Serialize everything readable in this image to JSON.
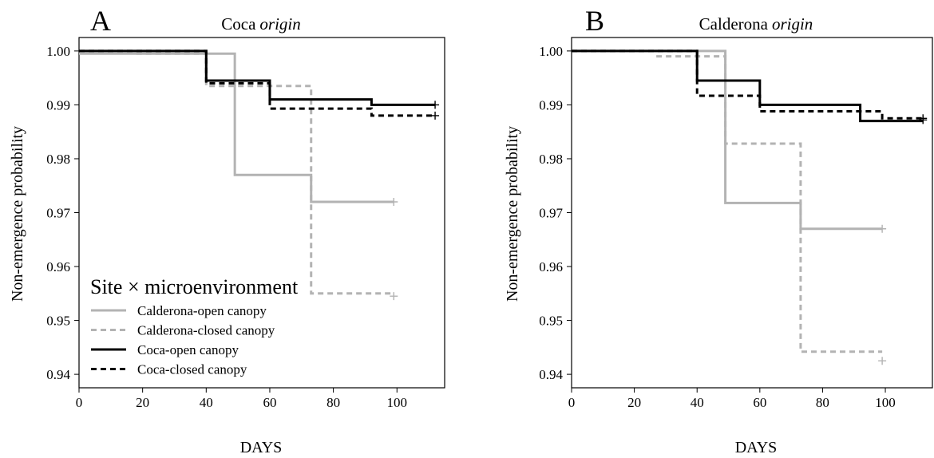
{
  "colors": {
    "calderona": "#b3b3b3",
    "coca": "#000000",
    "axis": "#000000"
  },
  "legend": {
    "title": "Site × microenvironment",
    "entries": [
      {
        "label": "Calderona-open canopy",
        "color": "#b3b3b3",
        "dash": "solid"
      },
      {
        "label": "Calderona-closed canopy",
        "color": "#b3b3b3",
        "dash": "dashed"
      },
      {
        "label": "Coca-open canopy",
        "color": "#000000",
        "dash": "solid"
      },
      {
        "label": "Coca-closed canopy",
        "color": "#000000",
        "dash": "dashed"
      }
    ]
  },
  "chart_data": [
    {
      "type": "line",
      "panel_letter": "A",
      "title_main": "Coca",
      "title_italic": "origin",
      "xlabel": "DAYS",
      "ylabel": "Non-emergence probability",
      "xlim": [
        0,
        115
      ],
      "ylim": [
        0.9375,
        1.0025
      ],
      "xticks": [
        0,
        20,
        40,
        60,
        80,
        100
      ],
      "yticks": [
        "0.94",
        "0.95",
        "0.96",
        "0.97",
        "0.98",
        "0.99",
        "1.00"
      ],
      "series": [
        {
          "name": "Calderona-open canopy",
          "style": "solid",
          "color": "#b3b3b3",
          "x": [
            0,
            49,
            73,
            99
          ],
          "y": [
            0.9995,
            0.977,
            0.972,
            0.972
          ]
        },
        {
          "name": "Calderona-closed canopy",
          "style": "dashed",
          "color": "#b3b3b3",
          "x": [
            18,
            40,
            73,
            99
          ],
          "y": [
            0.9995,
            0.9935,
            0.955,
            0.955
          ]
        },
        {
          "name": "Coca-open canopy",
          "style": "solid",
          "color": "#000000",
          "x": [
            0,
            40,
            60,
            92,
            112
          ],
          "y": [
            1.0,
            0.9945,
            0.991,
            0.99,
            0.99
          ]
        },
        {
          "name": "Coca-closed canopy",
          "style": "dashed",
          "color": "#000000",
          "x": [
            0,
            40,
            60,
            92,
            112
          ],
          "y": [
            1.0,
            0.994,
            0.9893,
            0.988,
            0.988
          ]
        }
      ],
      "censor_marks": [
        {
          "x": 99,
          "y": 0.972,
          "color": "#b3b3b3"
        },
        {
          "x": 99,
          "y": 0.9545,
          "color": "#b3b3b3"
        },
        {
          "x": 112,
          "y": 0.99,
          "color": "#000000"
        },
        {
          "x": 112,
          "y": 0.988,
          "color": "#000000"
        }
      ],
      "show_legend": true
    },
    {
      "type": "line",
      "panel_letter": "B",
      "title_main": "Calderona",
      "title_italic": "origin",
      "xlabel": "DAYS",
      "ylabel": "Non-emergence probability",
      "xlim": [
        0,
        115
      ],
      "ylim": [
        0.9375,
        1.0025
      ],
      "xticks": [
        0,
        20,
        40,
        60,
        80,
        100
      ],
      "yticks": [
        "0.94",
        "0.95",
        "0.96",
        "0.97",
        "0.98",
        "0.99",
        "1.00"
      ],
      "series": [
        {
          "name": "Calderona-open canopy",
          "style": "solid",
          "color": "#b3b3b3",
          "x": [
            0,
            49,
            73,
            99
          ],
          "y": [
            1.0,
            0.9718,
            0.967,
            0.967
          ]
        },
        {
          "name": "Calderona-closed canopy",
          "style": "dashed",
          "color": "#b3b3b3",
          "x": [
            27,
            49,
            73,
            99
          ],
          "y": [
            0.999,
            0.9828,
            0.9442,
            0.9442
          ]
        },
        {
          "name": "Coca-open canopy",
          "style": "solid",
          "color": "#000000",
          "x": [
            0,
            40,
            60,
            92,
            112
          ],
          "y": [
            1.0,
            0.9945,
            0.99,
            0.987,
            0.987
          ]
        },
        {
          "name": "Coca-closed canopy",
          "style": "dashed",
          "color": "#000000",
          "x": [
            0,
            40,
            60,
            99,
            112
          ],
          "y": [
            1.0,
            0.9917,
            0.9888,
            0.9875,
            0.9875
          ]
        }
      ],
      "censor_marks": [
        {
          "x": 99,
          "y": 0.967,
          "color": "#b3b3b3"
        },
        {
          "x": 99,
          "y": 0.9425,
          "color": "#b3b3b3"
        },
        {
          "x": 112,
          "y": 0.9872,
          "color": "#000000"
        },
        {
          "x": 112,
          "y": 0.9875,
          "color": "#000000"
        }
      ],
      "show_legend": false
    }
  ]
}
